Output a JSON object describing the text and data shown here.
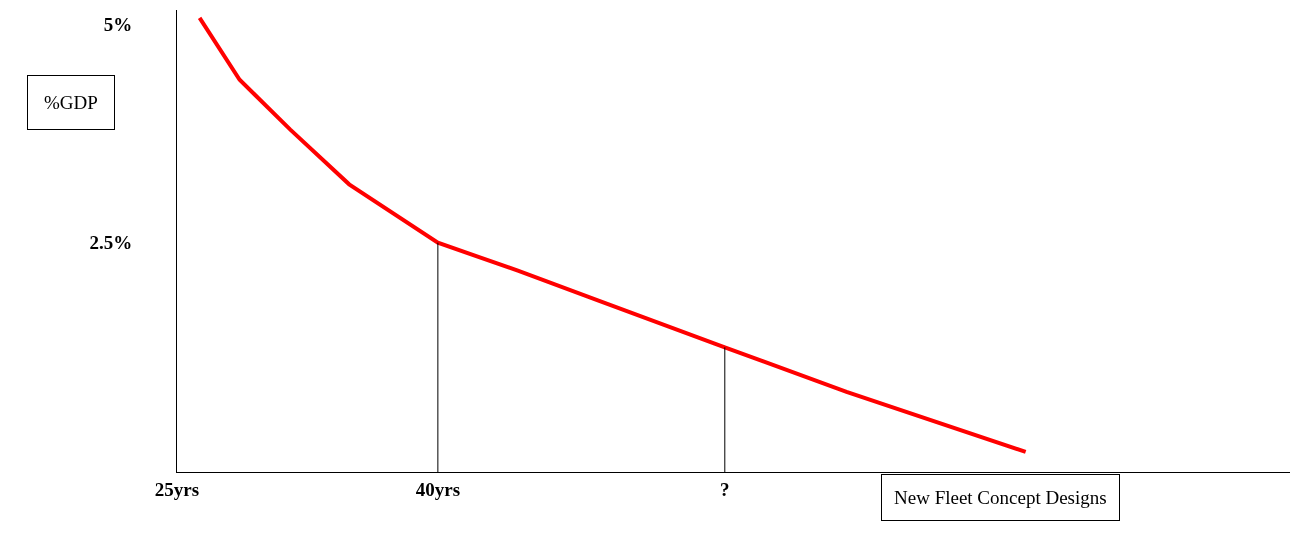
{
  "chart_data": {
    "type": "line",
    "ylabel": "%GDP",
    "annotations": [
      "New Fleet Concept Designs"
    ],
    "xlim": [
      25,
      89
    ],
    "ylim": [
      -0.13,
      5.17
    ],
    "xticks": [
      {
        "value": 25,
        "label": "25yrs"
      },
      {
        "value": 40,
        "label": "40yrs"
      },
      {
        "value": 56.5,
        "label": "?"
      }
    ],
    "yticks": [
      {
        "value": 5,
        "label": "5%"
      },
      {
        "value": 2.5,
        "label": "2.5%"
      }
    ],
    "marker": "none",
    "line_style": "solid",
    "series": [
      {
        "color": "#ff0000",
        "x": [
          26.3,
          28.6,
          31.5,
          34.9,
          40,
          44.6,
          49.2,
          56.5,
          63.5,
          73.8
        ],
        "values": [
          5.08,
          4.37,
          3.8,
          3.17,
          2.5,
          2.18,
          1.84,
          1.3,
          0.79,
          0.1
        ]
      },
      {
        "color": "#000000",
        "x": [
          40,
          40
        ],
        "values": [
          -0.13,
          2.5
        ]
      },
      {
        "color": "#000000",
        "x": [
          56.5,
          56.5
        ],
        "values": [
          -0.13,
          1.3
        ]
      }
    ]
  }
}
